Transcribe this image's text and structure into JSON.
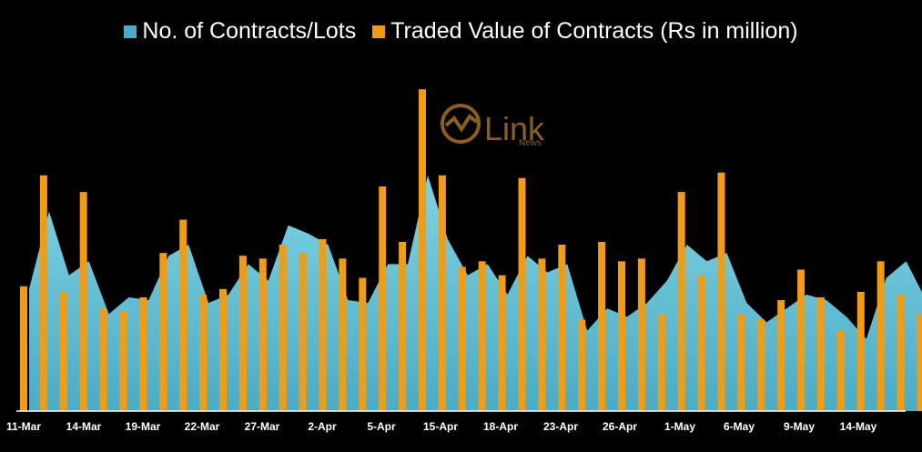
{
  "legend": {
    "series1_label": "No. of Contracts/Lots",
    "series2_label": "Traded Value of Contracts (Rs in million)"
  },
  "watermark": {
    "text": "Link",
    "subtext": "News"
  },
  "colors": {
    "background": "#000000",
    "area": "#4bacc6",
    "bar": "#f39c12",
    "axis_text": "#ffffff"
  },
  "chart_data": {
    "type": "bar",
    "title": "",
    "xlabel": "",
    "ylabel": "",
    "grid": false,
    "legend_position": "top",
    "x_tick_labels": [
      "11-Mar",
      "14-Mar",
      "19-Mar",
      "22-Mar",
      "27-Mar",
      "2-Apr",
      "5-Apr",
      "15-Apr",
      "18-Apr",
      "23-Apr",
      "26-Apr",
      "1-May",
      "6-May",
      "9-May",
      "14-May"
    ],
    "series": [
      {
        "name": "No. of Contracts/Lots",
        "type": "area",
        "values": [
          44,
          72,
          49,
          54,
          35,
          41,
          40,
          56,
          60,
          39,
          42,
          53,
          47,
          67,
          64,
          60,
          40,
          39,
          53,
          53,
          85,
          62,
          49,
          53,
          42,
          56,
          50,
          53,
          29,
          37,
          34,
          39,
          47,
          60,
          54,
          57,
          39,
          32,
          37,
          42,
          40,
          34,
          26,
          48,
          54,
          40
        ]
      },
      {
        "name": "Traded Value of Contracts (Rs in million)",
        "type": "bar",
        "values": [
          45,
          85,
          43,
          79,
          37,
          36,
          41,
          57,
          69,
          42,
          44,
          56,
          55,
          60,
          57,
          62,
          55,
          48,
          81,
          61,
          116,
          85,
          52,
          54,
          49,
          84,
          55,
          60,
          33,
          61,
          54,
          55,
          35,
          79,
          49,
          86,
          35,
          33,
          40,
          51,
          41,
          29,
          43,
          54,
          42,
          35
        ]
      }
    ]
  }
}
